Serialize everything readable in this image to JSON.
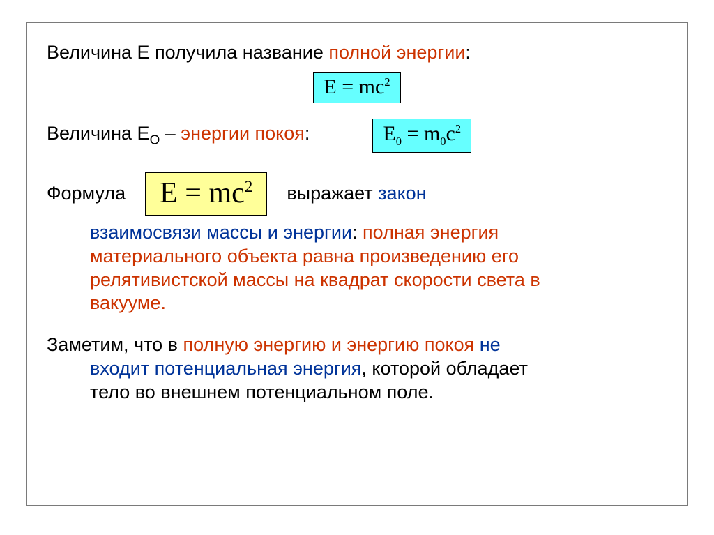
{
  "colors": {
    "text_black": "#000000",
    "text_red": "#cc3300",
    "text_blue": "#003399",
    "box_cyan": "#66ffff",
    "box_yellow": "#ffff99",
    "frame_border": "#7a7a7a",
    "background": "#ffffff"
  },
  "fonts": {
    "body_family": "Arial, sans-serif",
    "body_size_pt": 20,
    "formula_family": "Times New Roman, serif",
    "formula_small_pt": 22,
    "formula_big_pt": 32
  },
  "line1": {
    "a": "Величина    ",
    "b": "E",
    "c": "  получила название ",
    "d": "полной энергии",
    "e": ":"
  },
  "formula1": {
    "lhs": "E",
    "eq": " = ",
    "rhs": "mc",
    "exp": "2",
    "bg": "#66ffff"
  },
  "line2": {
    "a": "Величина   ",
    "b": "E",
    "bsub": "O",
    "c": "  – ",
    "d": "энергии покоя",
    "e": ":"
  },
  "formula2": {
    "lhs": "E",
    "lsub": "0",
    "eq": " = ",
    "rhs1": "m",
    "rsub": "0",
    "rhs2": "c",
    "exp": "2",
    "bg": "#66ffff"
  },
  "line3a": "Формула",
  "formula3": {
    "lhs": "E",
    "eq": " = ",
    "rhs": "mc",
    "exp": "2",
    "bg": "#ffff99"
  },
  "line3b": {
    "a": "выражает ",
    "b": "закон"
  },
  "line4": "взаимосвязи массы и энергии",
  "line4b": ": ",
  "line4c": "полная энергия",
  "line5": "материального объекта равна произведению его",
  "line6": "релятивистской массы на квадрат скорости света в",
  "line7": "вакууме.",
  "line8a": "Заметим, что в ",
  "line8b": "полную энергию и энергию покоя",
  "line8c": " не",
  "line9a": "входит потенциальная энергия",
  "line9b": ", которой обладает",
  "line10": "тело во внешнем потенциальном поле."
}
